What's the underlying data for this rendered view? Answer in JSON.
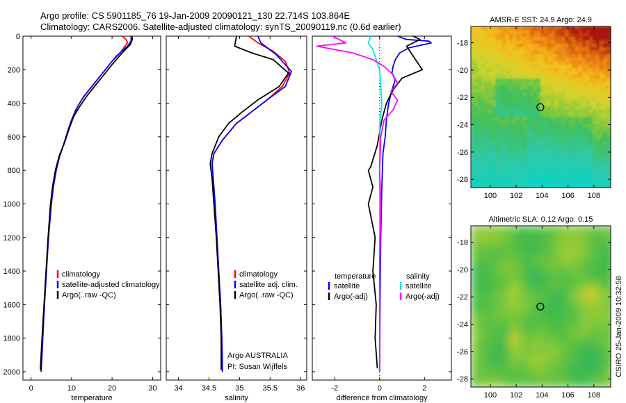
{
  "title_line1": "Argo profile: CS 5901185_76 19-Jan-2009 20090121_130 22.714S 103.864E",
  "title_line2": "Climatology: CARS2006. Satellite-adjusted climatology: synTS_20090119.nc (0.6d earlier)",
  "credit": "CSIRO 25-Jan-2009 10:32:58",
  "colors": {
    "climatology": "#ff0000",
    "satellite": "#0000ff",
    "argo": "#000000",
    "salinity_satellite": "#00e5e5",
    "salinity_argo": "#ff00ff"
  },
  "chart_data": [
    {
      "type": "line",
      "name": "temperature-profile",
      "xlabel": "temperature",
      "xlim": [
        -2,
        32
      ],
      "ylim": [
        2050,
        0
      ],
      "xticks": [
        0,
        10,
        20,
        30
      ],
      "yticks": [
        0,
        200,
        400,
        600,
        800,
        1000,
        1200,
        1400,
        1600,
        1800,
        2000
      ],
      "legend": [
        "climatology",
        "satellite-adjusted climatology",
        "Argo(..raw -QC)"
      ],
      "series": [
        {
          "name": "climatology",
          "color": "#ff0000",
          "points": [
            [
              22.5,
              0
            ],
            [
              23.5,
              20
            ],
            [
              23.8,
              40
            ],
            [
              22,
              100
            ],
            [
              20,
              150
            ],
            [
              18,
              210
            ],
            [
              16,
              270
            ],
            [
              14,
              330
            ],
            [
              12.5,
              380
            ],
            [
              11,
              440
            ],
            [
              10,
              500
            ],
            [
              9,
              570
            ],
            [
              8,
              650
            ],
            [
              7,
              720
            ],
            [
              6.2,
              800
            ],
            [
              5.5,
              900
            ],
            [
              5,
              1000
            ],
            [
              4.3,
              1200
            ],
            [
              3.8,
              1400
            ],
            [
              3.3,
              1600
            ],
            [
              2.9,
              1800
            ],
            [
              2.5,
              2000
            ]
          ]
        },
        {
          "name": "satellite-adjusted climatology",
          "color": "#0000ff",
          "points": [
            [
              24.7,
              0
            ],
            [
              24.7,
              30
            ],
            [
              23.8,
              60
            ],
            [
              21,
              120
            ],
            [
              19,
              180
            ],
            [
              17,
              240
            ],
            [
              15,
              300
            ],
            [
              13,
              360
            ],
            [
              11.5,
              420
            ],
            [
              10,
              500
            ],
            [
              9,
              570
            ],
            [
              8,
              650
            ],
            [
              7,
              720
            ],
            [
              6.2,
              800
            ],
            [
              5.5,
              900
            ],
            [
              5,
              1000
            ],
            [
              4.3,
              1200
            ],
            [
              3.8,
              1400
            ],
            [
              3.3,
              1600
            ],
            [
              2.9,
              1800
            ],
            [
              2.5,
              2000
            ]
          ]
        },
        {
          "name": "Argo(..raw -QC)",
          "color": "#000000",
          "points": [
            [
              24.9,
              0
            ],
            [
              25,
              20
            ],
            [
              24.5,
              50
            ],
            [
              22.5,
              100
            ],
            [
              20,
              170
            ],
            [
              18,
              230
            ],
            [
              16,
              290
            ],
            [
              14,
              350
            ],
            [
              12,
              420
            ],
            [
              10.5,
              480
            ],
            [
              9.3,
              560
            ],
            [
              8.2,
              640
            ],
            [
              7,
              710
            ],
            [
              6,
              800
            ],
            [
              5.3,
              900
            ],
            [
              4.8,
              1000
            ],
            [
              4.2,
              1200
            ],
            [
              3.7,
              1400
            ],
            [
              3.2,
              1600
            ],
            [
              2.7,
              1800
            ],
            [
              2.3,
              1990
            ]
          ]
        }
      ]
    },
    {
      "type": "line",
      "name": "salinity-profile",
      "xlabel": "salinity",
      "xlim": [
        33.8,
        36.1
      ],
      "ylim": [
        2050,
        0
      ],
      "xticks": [
        34,
        34.5,
        35,
        35.5,
        36
      ],
      "legend": [
        "climatology",
        "satellite adj. clim.",
        "Argo(..raw -QC)"
      ],
      "annotation": [
        "Argo AUSTRALIA",
        "PI: Susan Wijffels"
      ],
      "series": [
        {
          "name": "climatology",
          "color": "#ff0000",
          "points": [
            [
              35.15,
              0
            ],
            [
              35.3,
              40
            ],
            [
              35.55,
              90
            ],
            [
              35.75,
              150
            ],
            [
              35.82,
              220
            ],
            [
              35.7,
              300
            ],
            [
              35.45,
              380
            ],
            [
              35.2,
              450
            ],
            [
              34.95,
              520
            ],
            [
              34.72,
              620
            ],
            [
              34.58,
              700
            ],
            [
              34.55,
              760
            ],
            [
              34.57,
              850
            ],
            [
              34.6,
              1000
            ],
            [
              34.63,
              1200
            ],
            [
              34.66,
              1400
            ],
            [
              34.69,
              1600
            ],
            [
              34.71,
              1800
            ],
            [
              34.72,
              2000
            ]
          ]
        },
        {
          "name": "satellite adj. clim.",
          "color": "#0000ff",
          "points": [
            [
              35.3,
              0
            ],
            [
              35.35,
              40
            ],
            [
              35.6,
              110
            ],
            [
              35.85,
              210
            ],
            [
              35.75,
              300
            ],
            [
              35.45,
              380
            ],
            [
              35.2,
              450
            ],
            [
              34.95,
              520
            ],
            [
              34.72,
              620
            ],
            [
              34.58,
              700
            ],
            [
              34.55,
              760
            ],
            [
              34.57,
              850
            ],
            [
              34.6,
              1000
            ],
            [
              34.63,
              1200
            ],
            [
              34.66,
              1400
            ],
            [
              34.69,
              1600
            ],
            [
              34.71,
              1800
            ],
            [
              34.72,
              2000
            ]
          ]
        },
        {
          "name": "Argo(..raw -QC)",
          "color": "#000000",
          "points": [
            [
              34.95,
              0
            ],
            [
              34.92,
              60
            ],
            [
              35.2,
              100
            ],
            [
              35.55,
              140
            ],
            [
              35.8,
              220
            ],
            [
              35.65,
              300
            ],
            [
              35.3,
              380
            ],
            [
              35.05,
              450
            ],
            [
              34.82,
              520
            ],
            [
              34.66,
              600
            ],
            [
              34.55,
              700
            ],
            [
              34.52,
              760
            ],
            [
              34.55,
              850
            ],
            [
              34.58,
              1000
            ],
            [
              34.62,
              1200
            ],
            [
              34.65,
              1400
            ],
            [
              34.68,
              1600
            ],
            [
              34.7,
              1800
            ],
            [
              34.7,
              1990
            ]
          ]
        }
      ]
    },
    {
      "type": "line",
      "name": "difference-profile",
      "xlabel": "difference from climatology",
      "xlim": [
        -3,
        3.2
      ],
      "ylim": [
        2050,
        0
      ],
      "xticks": [
        -2,
        0,
        2
      ],
      "legend_headers": [
        "temperature",
        "salinity"
      ],
      "legend": [
        "satellite",
        "Argo(-adj)",
        "satellite",
        "Argo(-adj)"
      ],
      "series": [
        {
          "name": "temperature satellite",
          "color": "#0000ff",
          "points": [
            [
              0.8,
              0
            ],
            [
              1.2,
              20
            ],
            [
              2.2,
              30
            ],
            [
              2.3,
              40
            ],
            [
              1.3,
              70
            ],
            [
              0.9,
              100
            ],
            [
              0.7,
              140
            ],
            [
              0.6,
              180
            ],
            [
              0.55,
              220
            ],
            [
              0.7,
              260
            ],
            [
              0.55,
              320
            ],
            [
              0.4,
              400
            ],
            [
              0.3,
              500
            ],
            [
              0.25,
              600
            ],
            [
              0.15,
              700
            ],
            [
              0.1,
              900
            ],
            [
              0.05,
              1200
            ],
            [
              0.02,
              1600
            ],
            [
              0,
              2000
            ]
          ]
        },
        {
          "name": "temperature Argo(-adj)",
          "color": "#000000",
          "points": [
            [
              1.5,
              0
            ],
            [
              1.8,
              20
            ],
            [
              1.2,
              60
            ],
            [
              1.5,
              120
            ],
            [
              1.9,
              200
            ],
            [
              1,
              250
            ],
            [
              0.6,
              320
            ],
            [
              0.3,
              400
            ],
            [
              0.1,
              500
            ],
            [
              -0.1,
              650
            ],
            [
              -0.4,
              780
            ],
            [
              -0.5,
              800
            ],
            [
              -0.3,
              900
            ],
            [
              -0.5,
              1000
            ],
            [
              -0.2,
              1200
            ],
            [
              -0.3,
              1400
            ],
            [
              -0.15,
              1600
            ],
            [
              -0.2,
              1800
            ],
            [
              -0.1,
              1980
            ]
          ]
        },
        {
          "name": "salinity satellite",
          "color": "#00e5e5",
          "points": [
            [
              -0.4,
              0
            ],
            [
              -0.5,
              40
            ],
            [
              -0.3,
              80
            ],
            [
              -0.1,
              160
            ],
            [
              0,
              200
            ],
            [
              0.05,
              300
            ],
            [
              0.1,
              400
            ],
            [
              0.02,
              500
            ],
            [
              0,
              700
            ],
            [
              0,
              1000
            ],
            [
              0,
              1400
            ],
            [
              0,
              1800
            ],
            [
              0,
              2000
            ]
          ]
        },
        {
          "name": "salinity Argo(-adj)",
          "color": "#ff00ff",
          "points": [
            [
              -2.1,
              0
            ],
            [
              -1.5,
              40
            ],
            [
              -2.8,
              60
            ],
            [
              -1.2,
              100
            ],
            [
              -0.3,
              140
            ],
            [
              0.2,
              180
            ],
            [
              0.6,
              230
            ],
            [
              0.8,
              280
            ],
            [
              0.5,
              330
            ],
            [
              0.8,
              380
            ],
            [
              0.6,
              440
            ],
            [
              0.2,
              500
            ],
            [
              0.05,
              600
            ],
            [
              0,
              800
            ],
            [
              0.05,
              1000
            ],
            [
              0,
              1400
            ],
            [
              0,
              2000
            ]
          ]
        }
      ]
    },
    {
      "type": "heatmap",
      "name": "sst-map",
      "title": "AMSR-E SST: 24.9 Argo: 24.9",
      "xlim": [
        98.5,
        109.3
      ],
      "ylim": [
        -28.6,
        -16.8
      ],
      "xticks": [
        100,
        102,
        104,
        106,
        108
      ],
      "yticks": [
        -18,
        -20,
        -22,
        -24,
        -26,
        -28
      ],
      "marker": {
        "lon": 103.864,
        "lat": -22.714
      }
    },
    {
      "type": "heatmap",
      "name": "sla-map",
      "title": "Altimetric SLA: 0.12 Argo: 0.15",
      "xlim": [
        98.5,
        109.3
      ],
      "ylim": [
        -28.6,
        -16.8
      ],
      "xticks": [
        100,
        102,
        104,
        106,
        108
      ],
      "yticks": [
        -18,
        -20,
        -22,
        -24,
        -26,
        -28
      ],
      "marker": {
        "lon": 103.864,
        "lat": -22.714
      }
    }
  ]
}
